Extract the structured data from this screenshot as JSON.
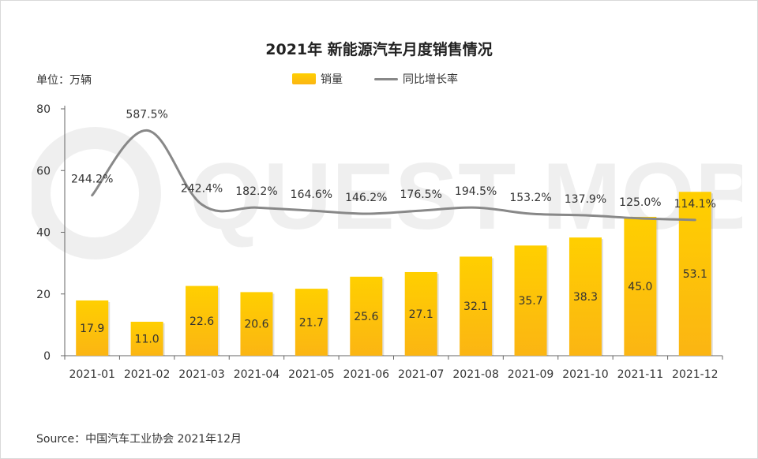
{
  "header": {
    "title": "2021年 新能源汽车月度销售情况",
    "unit": "单位：万辆"
  },
  "legend": {
    "bar_label": "销量",
    "line_label": "同比增长率"
  },
  "footer": {
    "source": "Source：中国汽车工业协会 2021年12月"
  },
  "watermark": {
    "text": "QUEST MOBILE"
  },
  "colors": {
    "bar_top": "#ffcf00",
    "bar_bottom": "#fbb513",
    "line": "#888888",
    "axis": "#666666"
  },
  "chart_data": {
    "type": "bar",
    "categories": [
      "2021-01",
      "2021-02",
      "2021-03",
      "2021-04",
      "2021-05",
      "2021-06",
      "2021-07",
      "2021-08",
      "2021-09",
      "2021-10",
      "2021-11",
      "2021-12"
    ],
    "ylim": [
      0,
      80
    ],
    "yticks": [
      0,
      20,
      40,
      60,
      80
    ],
    "series": [
      {
        "name": "销量",
        "type": "bar",
        "values": [
          17.9,
          11.0,
          22.6,
          20.6,
          21.7,
          25.6,
          27.1,
          32.1,
          35.7,
          38.3,
          45.0,
          53.1
        ],
        "labels": [
          "17.9",
          "11.0",
          "22.6",
          "20.6",
          "21.7",
          "25.6",
          "27.1",
          "32.1",
          "35.7",
          "38.3",
          "45.0",
          "53.1"
        ]
      },
      {
        "name": "同比增长率",
        "type": "line",
        "values": [
          244.2,
          587.5,
          242.4,
          182.2,
          164.6,
          146.2,
          176.5,
          194.5,
          153.2,
          137.9,
          125.0,
          114.1
        ],
        "labels": [
          "244.2%",
          "587.5%",
          "242.4%",
          "182.2%",
          "164.6%",
          "146.2%",
          "176.5%",
          "194.5%",
          "153.2%",
          "137.9%",
          "125.0%",
          "114.1%"
        ],
        "plot_y": [
          52,
          73,
          49,
          48,
          47,
          46,
          47,
          48,
          46,
          45.5,
          44.5,
          44
        ]
      }
    ],
    "grid": false,
    "legend_position": "top-center"
  }
}
